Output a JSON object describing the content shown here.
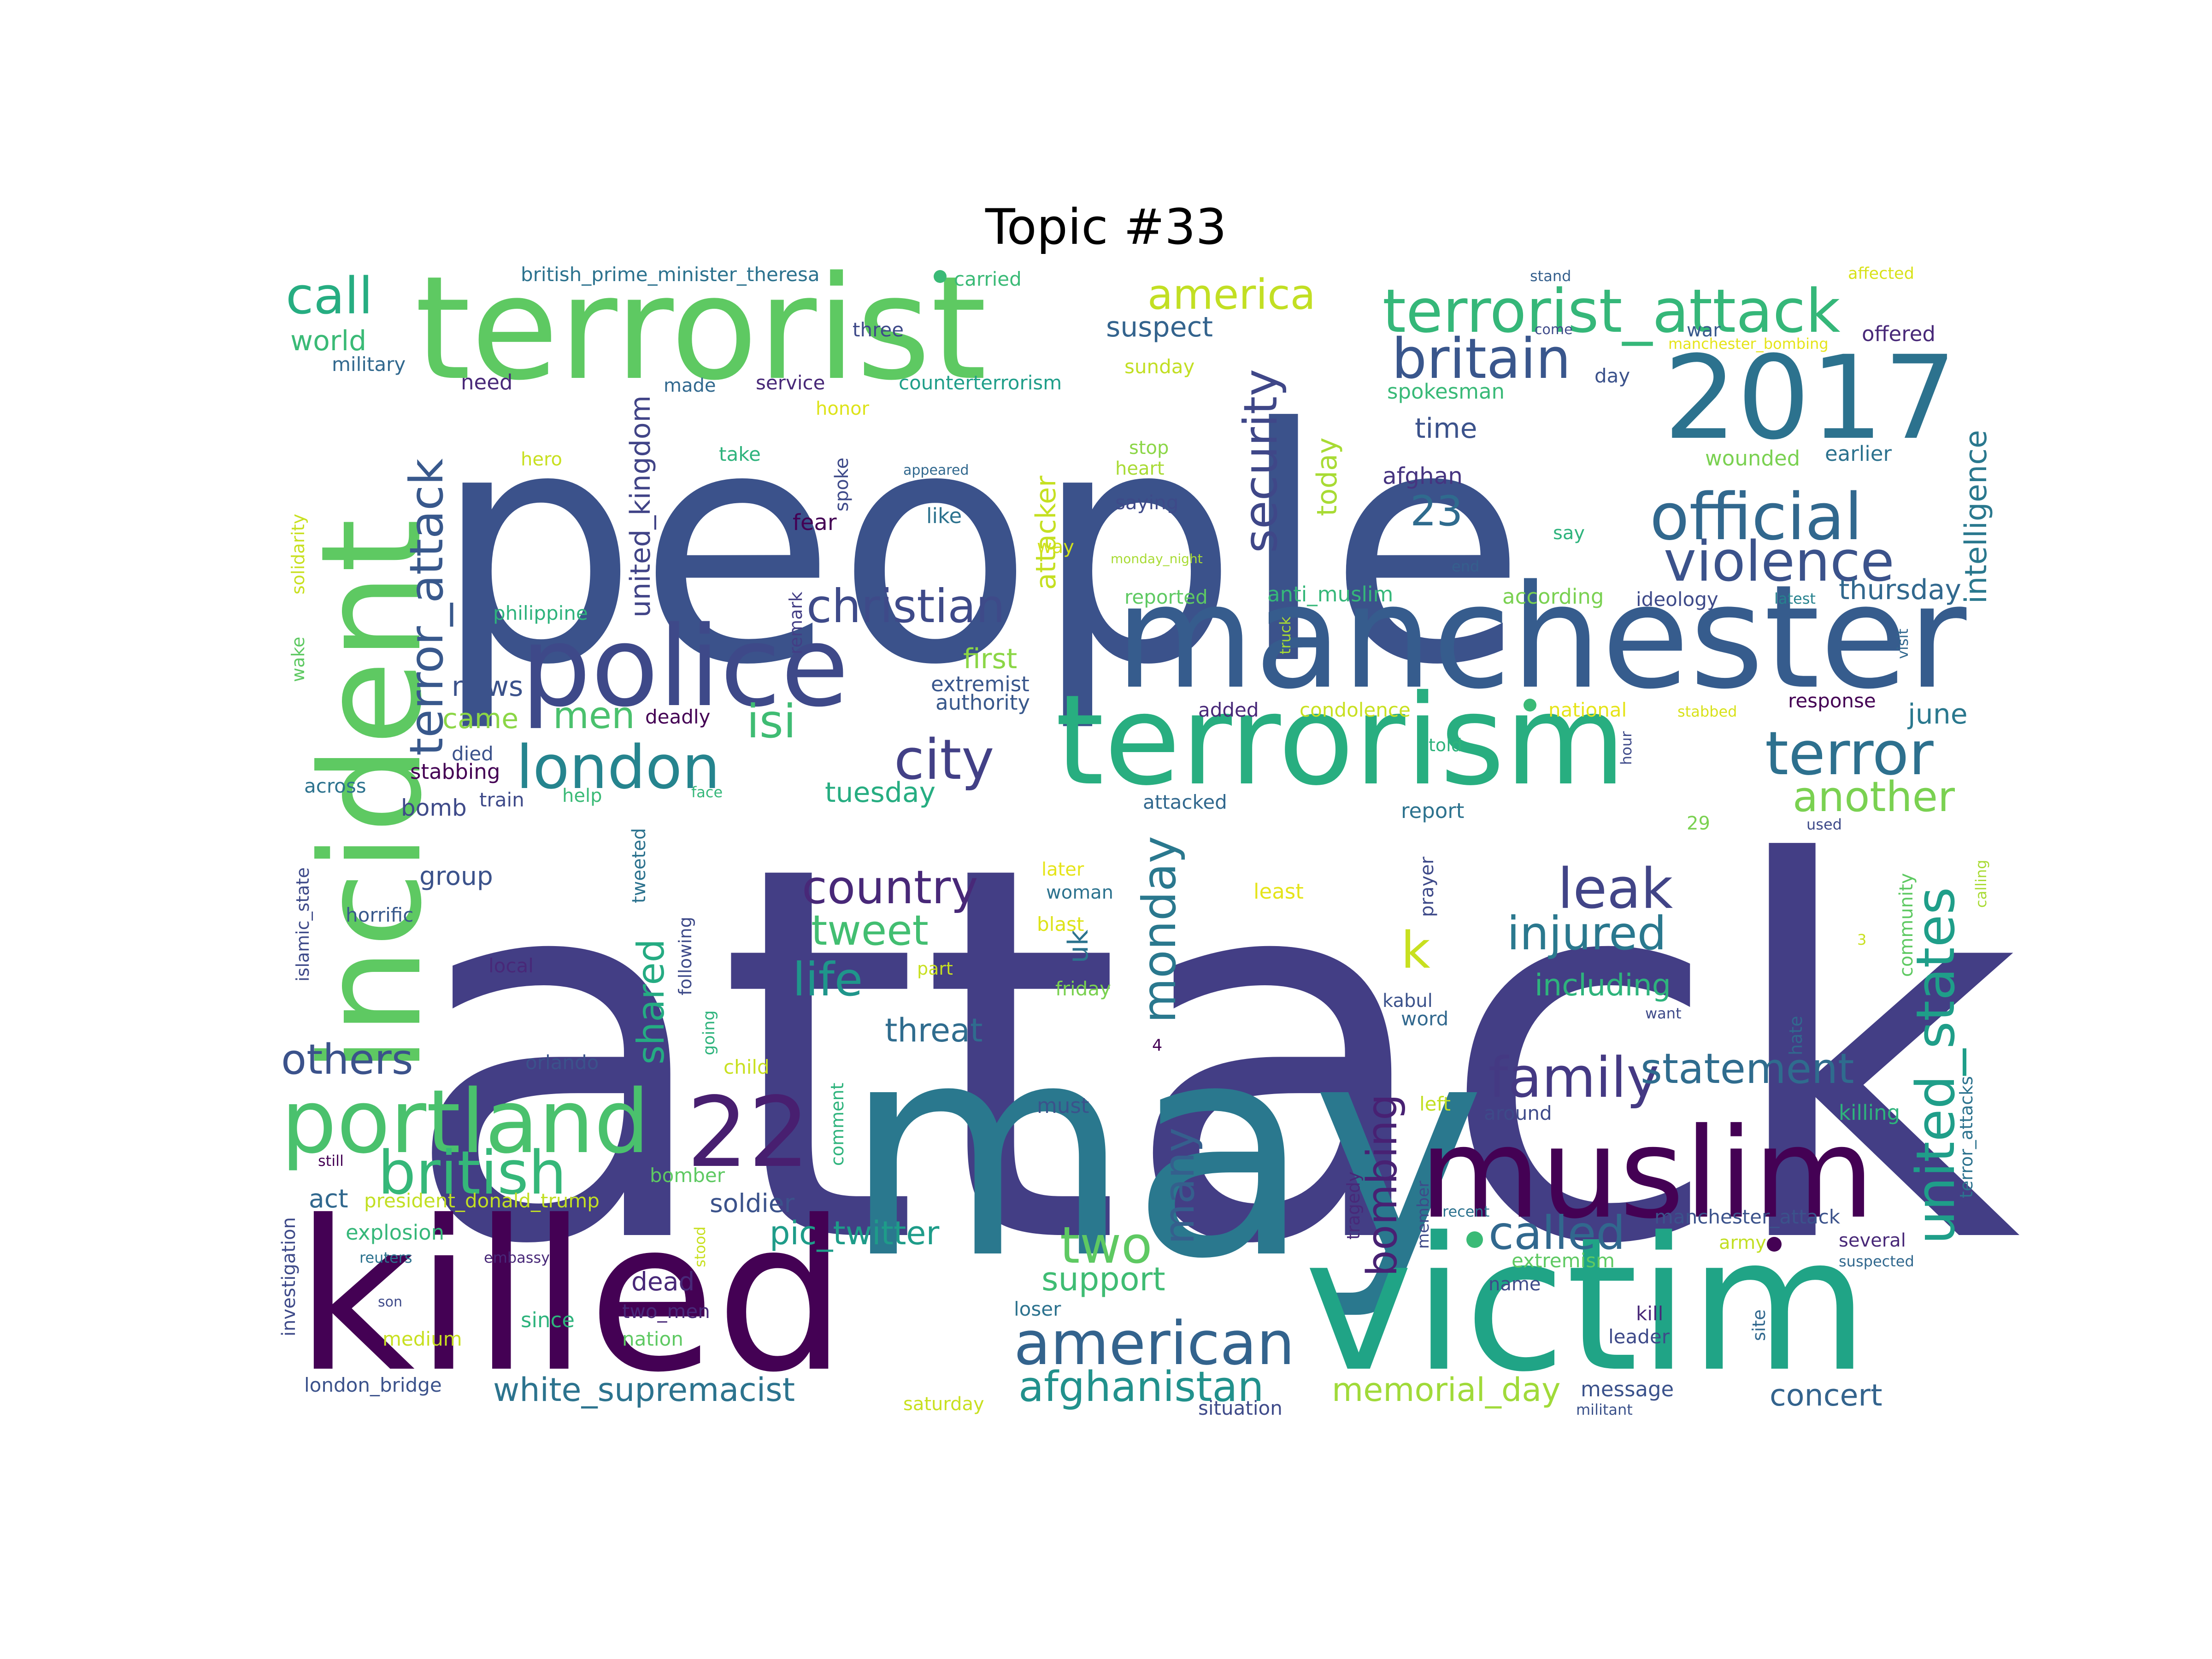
{
  "title": "Topic #33",
  "palette": "viridis",
  "words": [
    {
      "text": "attack",
      "color": "#433e85"
    },
    {
      "text": "people",
      "color": "#3b528b"
    },
    {
      "text": "may",
      "color": "#2a788e"
    },
    {
      "text": "killed",
      "color": "#440154"
    },
    {
      "text": "victim",
      "color": "#20a486"
    },
    {
      "text": "manchester",
      "color": "#365c8d"
    },
    {
      "text": "terrorist",
      "color": "#5ec962"
    },
    {
      "text": "incident",
      "color": "#5ec962"
    },
    {
      "text": "terrorism",
      "color": "#28ae80"
    },
    {
      "text": "muslim",
      "color": "#440154"
    },
    {
      "text": "police",
      "color": "#3e4989"
    },
    {
      "text": "2017",
      "color": "#2c728e"
    },
    {
      "text": "portland",
      "color": "#4ac16d"
    },
    {
      "text": "22",
      "color": "#481f70"
    },
    {
      "text": "terrorist_attack",
      "color": "#35b779"
    },
    {
      "text": "official",
      "color": "#31688e"
    },
    {
      "text": "violence",
      "color": "#3b528b"
    },
    {
      "text": "american",
      "color": "#33638d"
    },
    {
      "text": "terror",
      "color": "#2d708e"
    },
    {
      "text": "london",
      "color": "#25848e"
    },
    {
      "text": "british",
      "color": "#35b779"
    },
    {
      "text": "britain",
      "color": "#39568c"
    },
    {
      "text": "family",
      "color": "#443983"
    },
    {
      "text": "city",
      "color": "#424086"
    },
    {
      "text": "united_states",
      "color": "#1f9e89"
    },
    {
      "text": "terror_attack",
      "color": "#38588c"
    },
    {
      "text": "christian",
      "color": "#3e4a89"
    },
    {
      "text": "call",
      "color": "#26ad81"
    },
    {
      "text": "security",
      "color": "#3f4788"
    },
    {
      "text": "leak",
      "color": "#414487"
    },
    {
      "text": "injured",
      "color": "#2a788e"
    },
    {
      "text": "afghanistan",
      "color": "#21918c"
    },
    {
      "text": "another",
      "color": "#7ad151"
    },
    {
      "text": "statement",
      "color": "#2f6c8e"
    },
    {
      "text": "called",
      "color": "#31688e"
    },
    {
      "text": "country",
      "color": "#482878"
    },
    {
      "text": "two",
      "color": "#5ec962"
    },
    {
      "text": "monday",
      "color": "#2a788e"
    },
    {
      "text": "america",
      "color": "#c2df23"
    },
    {
      "text": "others",
      "color": "#3b528b"
    },
    {
      "text": "isi",
      "color": "#3fbc73"
    },
    {
      "text": "life",
      "color": "#1f968b"
    },
    {
      "text": "men",
      "color": "#4ac16d"
    },
    {
      "text": "tweet",
      "color": "#42be71"
    },
    {
      "text": "many",
      "color": "#355f8d"
    },
    {
      "text": "bombing",
      "color": "#482173"
    },
    {
      "text": "shared",
      "color": "#25ab82"
    },
    {
      "text": "k",
      "color": "#c8e020"
    },
    {
      "text": "23",
      "color": "#2f6b8e"
    },
    {
      "text": "white_supremacist",
      "color": "#2c738e"
    },
    {
      "text": "memorial_day",
      "color": "#a0da39"
    },
    {
      "text": "pic_twitter",
      "color": "#1e9c89"
    },
    {
      "text": "support",
      "color": "#3fbc73"
    },
    {
      "text": "threat",
      "color": "#2f6c8e"
    },
    {
      "text": "including",
      "color": "#2eb37c"
    },
    {
      "text": "intelligence",
      "color": "#2a788e"
    },
    {
      "text": "concert",
      "color": "#33638d"
    },
    {
      "text": "thursday",
      "color": "#31688e"
    },
    {
      "text": "june",
      "color": "#2a788e"
    },
    {
      "text": "suspect",
      "color": "#33638d"
    },
    {
      "text": "today",
      "color": "#a8db34"
    },
    {
      "text": "time",
      "color": "#3b528b"
    },
    {
      "text": "attacker",
      "color": "#c5e021"
    },
    {
      "text": "united_kingdom",
      "color": "#414487"
    },
    {
      "text": "world",
      "color": "#3aba76"
    },
    {
      "text": "first",
      "color": "#8bd646"
    },
    {
      "text": "tuesday",
      "color": "#26ad81"
    },
    {
      "text": "news",
      "color": "#3b528b"
    },
    {
      "text": "came",
      "color": "#8bd646"
    },
    {
      "text": "uk",
      "color": "#2c738e"
    },
    {
      "text": "group",
      "color": "#3b528b"
    },
    {
      "text": "act",
      "color": "#31688e"
    },
    {
      "text": "soldier",
      "color": "#3b528b"
    },
    {
      "text": "dead",
      "color": "#482878"
    },
    {
      "text": "bomb",
      "color": "#3e4a89"
    },
    {
      "text": "extremist",
      "color": "#39568c"
    },
    {
      "text": "authority",
      "color": "#38588c"
    },
    {
      "text": "afghan",
      "color": "#463480"
    },
    {
      "text": "spokesman",
      "color": "#38b977"
    },
    {
      "text": "wounded",
      "color": "#7ad151"
    },
    {
      "text": "earlier",
      "color": "#2c728e"
    },
    {
      "text": "offered",
      "color": "#482878"
    },
    {
      "text": "war",
      "color": "#38588c"
    },
    {
      "text": "manchester_bombing",
      "color": "#e5e419"
    },
    {
      "text": "affected",
      "color": "#d8e219"
    },
    {
      "text": "stand",
      "color": "#35608d"
    },
    {
      "text": "british_prime_minister_theresa",
      "color": "#2c728e"
    },
    {
      "text": "carried",
      "color": "#3aba76"
    },
    {
      "text": "three",
      "color": "#3e4a89"
    },
    {
      "text": "military",
      "color": "#31688e"
    },
    {
      "text": "need",
      "color": "#482878"
    },
    {
      "text": "made",
      "color": "#31688e"
    },
    {
      "text": "service",
      "color": "#482878"
    },
    {
      "text": "counterterrorism",
      "color": "#1f9e89"
    },
    {
      "text": "sunday",
      "color": "#c2df23"
    },
    {
      "text": "day",
      "color": "#3b528b"
    },
    {
      "text": "honor",
      "color": "#dde318"
    },
    {
      "text": "take",
      "color": "#2eb37c"
    },
    {
      "text": "hero",
      "color": "#c8e020"
    },
    {
      "text": "appeared",
      "color": "#31688e"
    },
    {
      "text": "stop",
      "color": "#8bd646"
    },
    {
      "text": "heart",
      "color": "#a8db34"
    },
    {
      "text": "saying",
      "color": "#3e4a89"
    },
    {
      "text": "spoke",
      "color": "#3e4a89"
    },
    {
      "text": "like",
      "color": "#2c728e"
    },
    {
      "text": "fear",
      "color": "#440154"
    },
    {
      "text": "way",
      "color": "#d2e21b"
    },
    {
      "text": "say",
      "color": "#2eb37c"
    },
    {
      "text": "end",
      "color": "#355f8d"
    },
    {
      "text": "solidarity",
      "color": "#c8e020"
    },
    {
      "text": "monday_night",
      "color": "#a8db34"
    },
    {
      "text": "philippine",
      "color": "#2eb37c"
    },
    {
      "text": "remark",
      "color": "#433e85"
    },
    {
      "text": "reported",
      "color": "#5ec962"
    },
    {
      "text": "anti_muslim",
      "color": "#35b779"
    },
    {
      "text": "according",
      "color": "#7ad151"
    },
    {
      "text": "ideology",
      "color": "#3e4a89"
    },
    {
      "text": "latest",
      "color": "#26828e"
    },
    {
      "text": "truck",
      "color": "#a8db34"
    },
    {
      "text": "visit",
      "color": "#31688e"
    },
    {
      "text": "wake",
      "color": "#5ec962"
    },
    {
      "text": "deadly",
      "color": "#440154"
    },
    {
      "text": "added",
      "color": "#482878"
    },
    {
      "text": "condolence",
      "color": "#c8e020"
    },
    {
      "text": "national",
      "color": "#e5e419"
    },
    {
      "text": "stabbed",
      "color": "#d8e219"
    },
    {
      "text": "response",
      "color": "#440154"
    },
    {
      "text": "hour",
      "color": "#3e4a89"
    },
    {
      "text": "across",
      "color": "#2c728e"
    },
    {
      "text": "died",
      "color": "#3b528b"
    },
    {
      "text": "stabbing",
      "color": "#440154"
    },
    {
      "text": "train",
      "color": "#3e4a89"
    },
    {
      "text": "help",
      "color": "#3aba76"
    },
    {
      "text": "face",
      "color": "#35b779"
    },
    {
      "text": "attacked",
      "color": "#31688e"
    },
    {
      "text": "told",
      "color": "#2eb37c"
    },
    {
      "text": "report",
      "color": "#2c728e"
    },
    {
      "text": "29",
      "color": "#7ad151"
    },
    {
      "text": "used",
      "color": "#3e4a89"
    },
    {
      "text": "calling",
      "color": "#a8db34"
    },
    {
      "text": "islamic_state",
      "color": "#3e4a89"
    },
    {
      "text": "tweeted",
      "color": "#2c728e"
    },
    {
      "text": "later",
      "color": "#e5e419"
    },
    {
      "text": "woman",
      "color": "#2c728e"
    },
    {
      "text": "least",
      "color": "#e5e419"
    },
    {
      "text": "prayer",
      "color": "#3e4a89"
    },
    {
      "text": "community",
      "color": "#5ec962"
    },
    {
      "text": "horrific",
      "color": "#38588c"
    },
    {
      "text": "following",
      "color": "#3e4a89"
    },
    {
      "text": "blast",
      "color": "#dde318"
    },
    {
      "text": "part",
      "color": "#c8e020"
    },
    {
      "text": "friday",
      "color": "#7ad151"
    },
    {
      "text": "local",
      "color": "#482878"
    },
    {
      "text": "going",
      "color": "#2eb37c"
    },
    {
      "text": "kabul",
      "color": "#3b528b"
    },
    {
      "text": "word",
      "color": "#31688e"
    },
    {
      "text": "want",
      "color": "#3e4a89"
    },
    {
      "text": "3",
      "color": "#c8e020"
    },
    {
      "text": "4",
      "color": "#440154"
    },
    {
      "text": "hate",
      "color": "#31688e"
    },
    {
      "text": "orlando",
      "color": "#3b528b"
    },
    {
      "text": "child",
      "color": "#c8e020"
    },
    {
      "text": "left",
      "color": "#c2df23"
    },
    {
      "text": "around",
      "color": "#3e4a89"
    },
    {
      "text": "killing",
      "color": "#2eb37c"
    },
    {
      "text": "terror_attacks",
      "color": "#2c728e"
    },
    {
      "text": "still",
      "color": "#440154"
    },
    {
      "text": "comment",
      "color": "#2eb37c"
    },
    {
      "text": "must",
      "color": "#3b528b"
    },
    {
      "text": "bomber",
      "color": "#5ec962"
    },
    {
      "text": "president_donald_trump",
      "color": "#c2df23"
    },
    {
      "text": "investigation",
      "color": "#3e4a89"
    },
    {
      "text": "explosion",
      "color": "#35b779"
    },
    {
      "text": "reuters",
      "color": "#2c728e"
    },
    {
      "text": "embassy",
      "color": "#482878"
    },
    {
      "text": "son",
      "color": "#3e4a89"
    },
    {
      "text": "medium",
      "color": "#c8e020"
    },
    {
      "text": "since",
      "color": "#2eb37c"
    },
    {
      "text": "two_men",
      "color": "#482878"
    },
    {
      "text": "nation",
      "color": "#5ec962"
    },
    {
      "text": "london_bridge",
      "color": "#3b528b"
    },
    {
      "text": "saturday",
      "color": "#c8e020"
    },
    {
      "text": "tragedy",
      "color": "#482878"
    },
    {
      "text": "member",
      "color": "#3e4a89"
    },
    {
      "text": "stood",
      "color": "#c8e020"
    },
    {
      "text": "recent",
      "color": "#2c728e"
    },
    {
      "text": "extremism",
      "color": "#5ec962"
    },
    {
      "text": "manchester_attack",
      "color": "#3b528b"
    },
    {
      "text": "several",
      "color": "#482878"
    },
    {
      "text": "army",
      "color": "#c2df23"
    },
    {
      "text": "suspected",
      "color": "#31688e"
    },
    {
      "text": "name",
      "color": "#3e4a89"
    },
    {
      "text": "loser",
      "color": "#2c728e"
    },
    {
      "text": "kill",
      "color": "#482878"
    },
    {
      "text": "site",
      "color": "#31688e"
    },
    {
      "text": "leader",
      "color": "#3e4a89"
    },
    {
      "text": "message",
      "color": "#3b528b"
    },
    {
      "text": "situation",
      "color": "#3e4a89"
    },
    {
      "text": "militant",
      "color": "#3b528b"
    },
    {
      "text": "come",
      "color": "#3e4a89"
    }
  ]
}
